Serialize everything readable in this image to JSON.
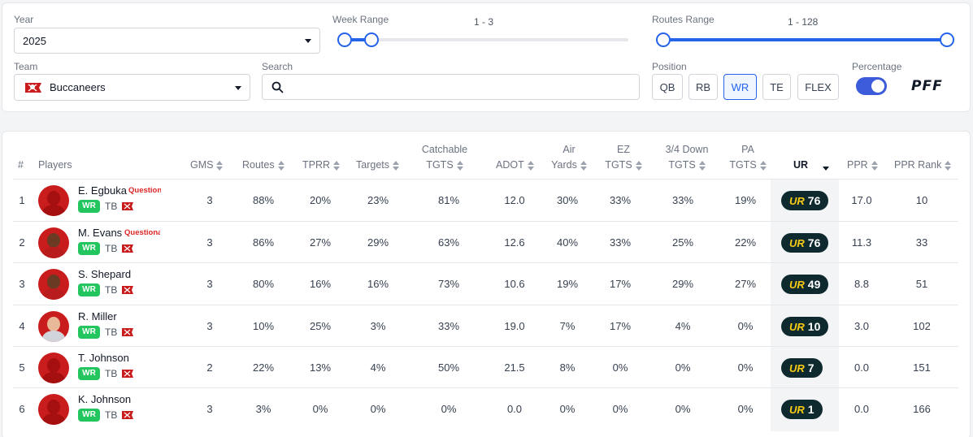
{
  "filters": {
    "year": {
      "label": "Year",
      "value": "2025"
    },
    "week_range": {
      "label": "Week Range",
      "text": "1 - 3",
      "min_selected": 1,
      "max_selected": 3
    },
    "routes_range": {
      "label": "Routes Range",
      "text": "1 - 128",
      "min_selected": 1,
      "max_selected": 128
    },
    "team": {
      "label": "Team",
      "value": "Buccaneers"
    },
    "search": {
      "label": "Search",
      "value": ""
    },
    "position": {
      "label": "Position",
      "options": [
        "QB",
        "RB",
        "WR",
        "TE",
        "FLEX"
      ],
      "selected": "WR"
    },
    "percentage": {
      "label": "Percentage",
      "enabled": true
    },
    "brand": "PFF"
  },
  "table": {
    "headers": {
      "rank": "#",
      "players": "Players",
      "gms": "GMS",
      "routes": "Routes",
      "tprr": "TPRR",
      "targets": "Targets",
      "catchable_l1": "Catchable",
      "catchable_l2": "TGTS",
      "adot": "ADOT",
      "air_l1": "Air",
      "air_l2": "Yards",
      "ez_l1": "EZ",
      "ez_l2": "TGTS",
      "down_l1": "3/4 Down",
      "down_l2": "TGTS",
      "pa_l1": "PA",
      "pa_l2": "TGTS",
      "ur": "UR",
      "ppr": "PPR",
      "ppr_rank": "PPR Rank"
    },
    "rows": [
      {
        "rank": "1",
        "name": "E. Egbuka",
        "injury": "Questionable",
        "pos": "WR",
        "team": "TB",
        "gms": "3",
        "routes": "88%",
        "tprr": "20%",
        "targets": "23%",
        "catchable": "81%",
        "adot": "12.0",
        "air": "30%",
        "ez": "33%",
        "down": "33%",
        "pa": "19%",
        "ur": "76",
        "ppr": "17.0",
        "ppr_rank": "10"
      },
      {
        "rank": "2",
        "name": "M. Evans",
        "injury": "Questionable",
        "pos": "WR",
        "team": "TB",
        "gms": "3",
        "routes": "86%",
        "tprr": "27%",
        "targets": "29%",
        "catchable": "63%",
        "adot": "12.6",
        "air": "40%",
        "ez": "33%",
        "down": "25%",
        "pa": "22%",
        "ur": "76",
        "ppr": "11.3",
        "ppr_rank": "33"
      },
      {
        "rank": "3",
        "name": "S. Shepard",
        "injury": "",
        "pos": "WR",
        "team": "TB",
        "gms": "3",
        "routes": "80%",
        "tprr": "16%",
        "targets": "16%",
        "catchable": "73%",
        "adot": "10.6",
        "air": "19%",
        "ez": "17%",
        "down": "29%",
        "pa": "27%",
        "ur": "49",
        "ppr": "8.8",
        "ppr_rank": "51"
      },
      {
        "rank": "4",
        "name": "R. Miller",
        "injury": "",
        "pos": "WR",
        "team": "TB",
        "gms": "3",
        "routes": "10%",
        "tprr": "25%",
        "targets": "3%",
        "catchable": "33%",
        "adot": "19.0",
        "air": "7%",
        "ez": "17%",
        "down": "4%",
        "pa": "0%",
        "ur": "10",
        "ppr": "3.0",
        "ppr_rank": "102"
      },
      {
        "rank": "5",
        "name": "T. Johnson",
        "injury": "",
        "pos": "WR",
        "team": "TB",
        "gms": "2",
        "routes": "22%",
        "tprr": "13%",
        "targets": "4%",
        "catchable": "50%",
        "adot": "21.5",
        "air": "8%",
        "ez": "0%",
        "down": "0%",
        "pa": "0%",
        "ur": "7",
        "ppr": "0.0",
        "ppr_rank": "151"
      },
      {
        "rank": "6",
        "name": "K. Johnson",
        "injury": "",
        "pos": "WR",
        "team": "TB",
        "gms": "3",
        "routes": "3%",
        "tprr": "0%",
        "targets": "0%",
        "catchable": "0%",
        "adot": "0.0",
        "air": "0%",
        "ez": "0%",
        "down": "0%",
        "pa": "0%",
        "ur": "1",
        "ppr": "0.0",
        "ppr_rank": "166"
      }
    ],
    "ur_mark": "UR"
  },
  "colors": {
    "accent": "#2563eb",
    "wr_badge": "#22c55e",
    "ur_badge": "#0f2a2e",
    "injury": "#dc2626",
    "team": "#c91d1d"
  }
}
